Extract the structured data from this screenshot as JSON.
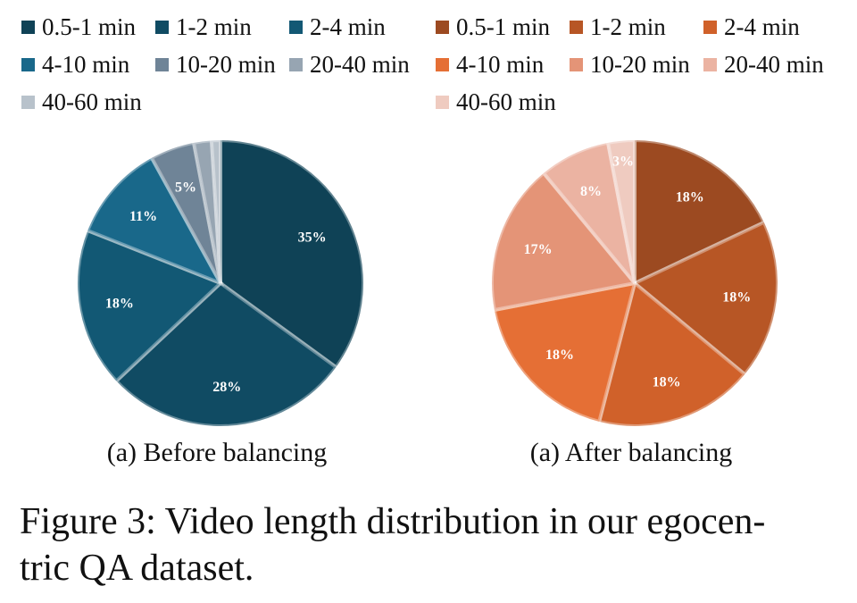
{
  "chart_data": [
    {
      "type": "pie",
      "title": "(a) Before balancing",
      "legend_position": "top",
      "slices": [
        {
          "label": "0.5-1 min",
          "value": 35,
          "display": "35%",
          "color": "#0f4256"
        },
        {
          "label": "1-2 min",
          "value": 28,
          "display": "28%",
          "color": "#104b63"
        },
        {
          "label": "2-4 min",
          "value": 18,
          "display": "18%",
          "color": "#125874"
        },
        {
          "label": "4-10 min",
          "value": 11,
          "display": "11%",
          "color": "#19688a"
        },
        {
          "label": "10-20 min",
          "value": 5,
          "display": "5%",
          "color": "#6f8497"
        },
        {
          "label": "20-40 min",
          "value": 2,
          "display": "2%",
          "color": "#97a5b2"
        },
        {
          "label": "40-60 min",
          "value": 1,
          "display": "1%",
          "color": "#b8c2cb"
        }
      ]
    },
    {
      "type": "pie",
      "title": "(a) After balancing",
      "legend_position": "top",
      "slices": [
        {
          "label": "0.5-1 min",
          "value": 18,
          "display": "18%",
          "color": "#9c4a21"
        },
        {
          "label": "1-2 min",
          "value": 18,
          "display": "18%",
          "color": "#b75625"
        },
        {
          "label": "2-4 min",
          "value": 18,
          "display": "18%",
          "color": "#d0612a"
        },
        {
          "label": "4-10 min",
          "value": 18,
          "display": "18%",
          "color": "#e56f35"
        },
        {
          "label": "10-20 min",
          "value": 17,
          "display": "17%",
          "color": "#e49477"
        },
        {
          "label": "20-40 min",
          "value": 8,
          "display": "8%",
          "color": "#ebb3a2"
        },
        {
          "label": "40-60 min",
          "value": 3,
          "display": "3%",
          "color": "#efcbc0"
        }
      ]
    }
  ],
  "figure_caption": "Figure 3: Video length distribution in our egocen-\ntric QA dataset."
}
